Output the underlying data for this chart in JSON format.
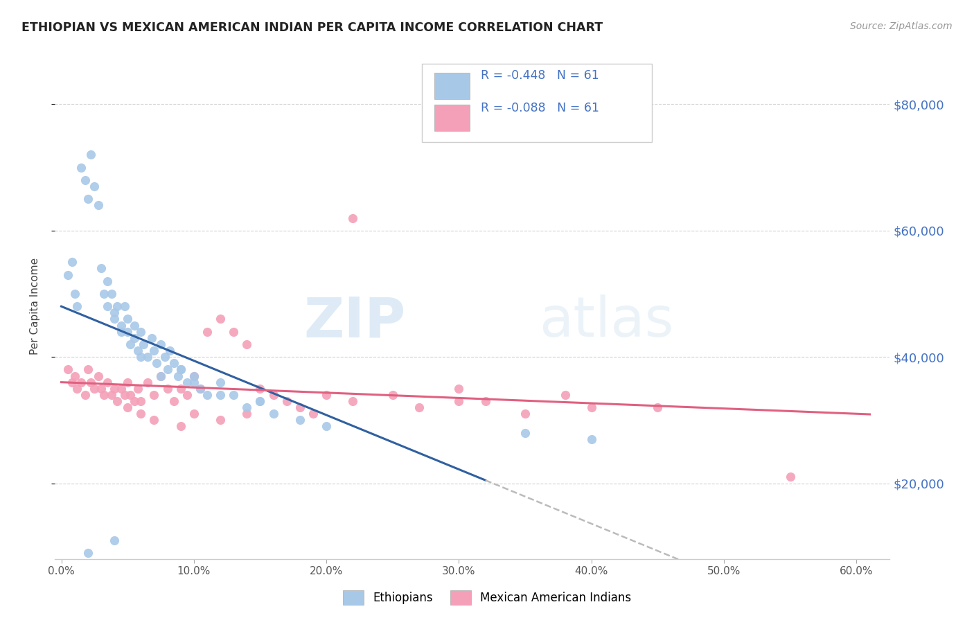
{
  "title": "ETHIOPIAN VS MEXICAN AMERICAN INDIAN PER CAPITA INCOME CORRELATION CHART",
  "source": "Source: ZipAtlas.com",
  "ylabel": "Per Capita Income",
  "xlabel_ticks": [
    "0.0%",
    "10.0%",
    "20.0%",
    "30.0%",
    "40.0%",
    "50.0%",
    "60.0%"
  ],
  "xlabel_vals": [
    0.0,
    0.1,
    0.2,
    0.3,
    0.4,
    0.5,
    0.6
  ],
  "ylabel_ticks": [
    "$20,000",
    "$40,000",
    "$60,000",
    "$80,000"
  ],
  "ylabel_vals": [
    20000,
    40000,
    60000,
    80000
  ],
  "xlim": [
    -0.005,
    0.625
  ],
  "ylim": [
    8000,
    88000
  ],
  "blue_color": "#a8c8e8",
  "pink_color": "#f4a0b8",
  "blue_line_color": "#3060a0",
  "pink_line_color": "#e06080",
  "dashed_line_color": "#bbbbbb",
  "legend_R1": "R = -0.448",
  "legend_N1": "N = 61",
  "legend_R2": "R = -0.088",
  "legend_N2": "N = 61",
  "watermark_zip": "ZIP",
  "watermark_atlas": "atlas",
  "legend_label1": "Ethiopians",
  "legend_label2": "Mexican American Indians",
  "ethiopians_x": [
    0.005,
    0.008,
    0.01,
    0.012,
    0.015,
    0.018,
    0.02,
    0.022,
    0.025,
    0.028,
    0.03,
    0.032,
    0.035,
    0.035,
    0.038,
    0.04,
    0.04,
    0.042,
    0.045,
    0.045,
    0.048,
    0.05,
    0.05,
    0.052,
    0.055,
    0.055,
    0.058,
    0.06,
    0.062,
    0.065,
    0.068,
    0.07,
    0.072,
    0.075,
    0.078,
    0.08,
    0.082,
    0.085,
    0.088,
    0.09,
    0.095,
    0.1,
    0.105,
    0.11,
    0.12,
    0.13,
    0.14,
    0.15,
    0.16,
    0.18,
    0.02,
    0.04,
    0.06,
    0.075,
    0.09,
    0.1,
    0.12,
    0.15,
    0.2,
    0.35,
    0.4
  ],
  "ethiopians_y": [
    53000,
    55000,
    50000,
    48000,
    70000,
    68000,
    65000,
    72000,
    67000,
    64000,
    54000,
    50000,
    52000,
    48000,
    50000,
    47000,
    46000,
    48000,
    45000,
    44000,
    48000,
    46000,
    44000,
    42000,
    45000,
    43000,
    41000,
    44000,
    42000,
    40000,
    43000,
    41000,
    39000,
    42000,
    40000,
    38000,
    41000,
    39000,
    37000,
    38000,
    36000,
    37000,
    35000,
    34000,
    36000,
    34000,
    32000,
    33000,
    31000,
    30000,
    9000,
    11000,
    40000,
    37000,
    38000,
    36000,
    34000,
    33000,
    29000,
    28000,
    27000
  ],
  "mexican_x": [
    0.005,
    0.008,
    0.01,
    0.012,
    0.015,
    0.018,
    0.02,
    0.022,
    0.025,
    0.028,
    0.03,
    0.032,
    0.035,
    0.038,
    0.04,
    0.042,
    0.045,
    0.048,
    0.05,
    0.052,
    0.055,
    0.058,
    0.06,
    0.065,
    0.07,
    0.075,
    0.08,
    0.085,
    0.09,
    0.095,
    0.1,
    0.105,
    0.11,
    0.12,
    0.13,
    0.14,
    0.15,
    0.16,
    0.17,
    0.18,
    0.19,
    0.2,
    0.22,
    0.25,
    0.27,
    0.3,
    0.32,
    0.35,
    0.38,
    0.4,
    0.05,
    0.06,
    0.07,
    0.09,
    0.1,
    0.12,
    0.14,
    0.22,
    0.3,
    0.45,
    0.55
  ],
  "mexican_y": [
    38000,
    36000,
    37000,
    35000,
    36000,
    34000,
    38000,
    36000,
    35000,
    37000,
    35000,
    34000,
    36000,
    34000,
    35000,
    33000,
    35000,
    34000,
    36000,
    34000,
    33000,
    35000,
    33000,
    36000,
    34000,
    37000,
    35000,
    33000,
    35000,
    34000,
    37000,
    35000,
    44000,
    46000,
    44000,
    42000,
    35000,
    34000,
    33000,
    32000,
    31000,
    34000,
    33000,
    34000,
    32000,
    35000,
    33000,
    31000,
    34000,
    32000,
    32000,
    31000,
    30000,
    29000,
    31000,
    30000,
    31000,
    62000,
    33000,
    32000,
    21000
  ]
}
